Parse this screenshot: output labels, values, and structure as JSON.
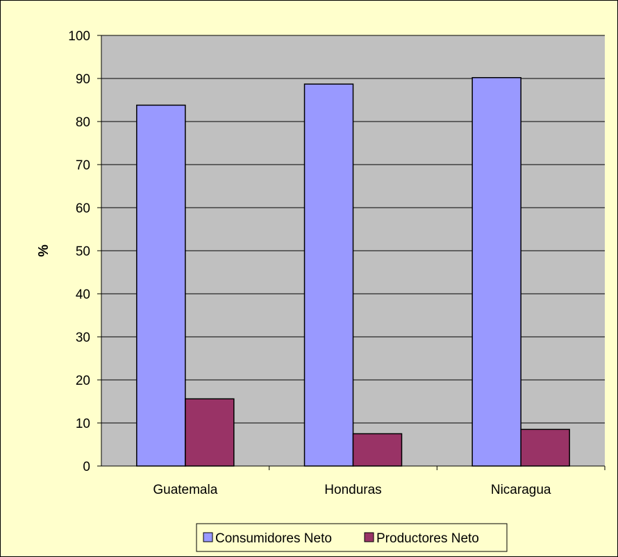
{
  "colors": {
    "background": "#ffffcc",
    "plot_area": "#c0c0c0",
    "gridline": "#000000",
    "series": [
      "#9999ff",
      "#993366"
    ]
  },
  "chart_data": {
    "type": "bar",
    "title": "",
    "xlabel": "",
    "ylabel": "%",
    "categories": [
      "Guatemala",
      "Honduras",
      "Nicaragua"
    ],
    "series": [
      {
        "name": "Consumidores Neto",
        "values": [
          83.8,
          88.7,
          90.2
        ]
      },
      {
        "name": "Productores Neto",
        "values": [
          15.6,
          7.5,
          8.5
        ]
      }
    ],
    "ylim": [
      0,
      100
    ],
    "yticks": [
      0,
      10,
      20,
      30,
      40,
      50,
      60,
      70,
      80,
      90,
      100
    ],
    "grid": true,
    "legend_position": "bottom"
  }
}
